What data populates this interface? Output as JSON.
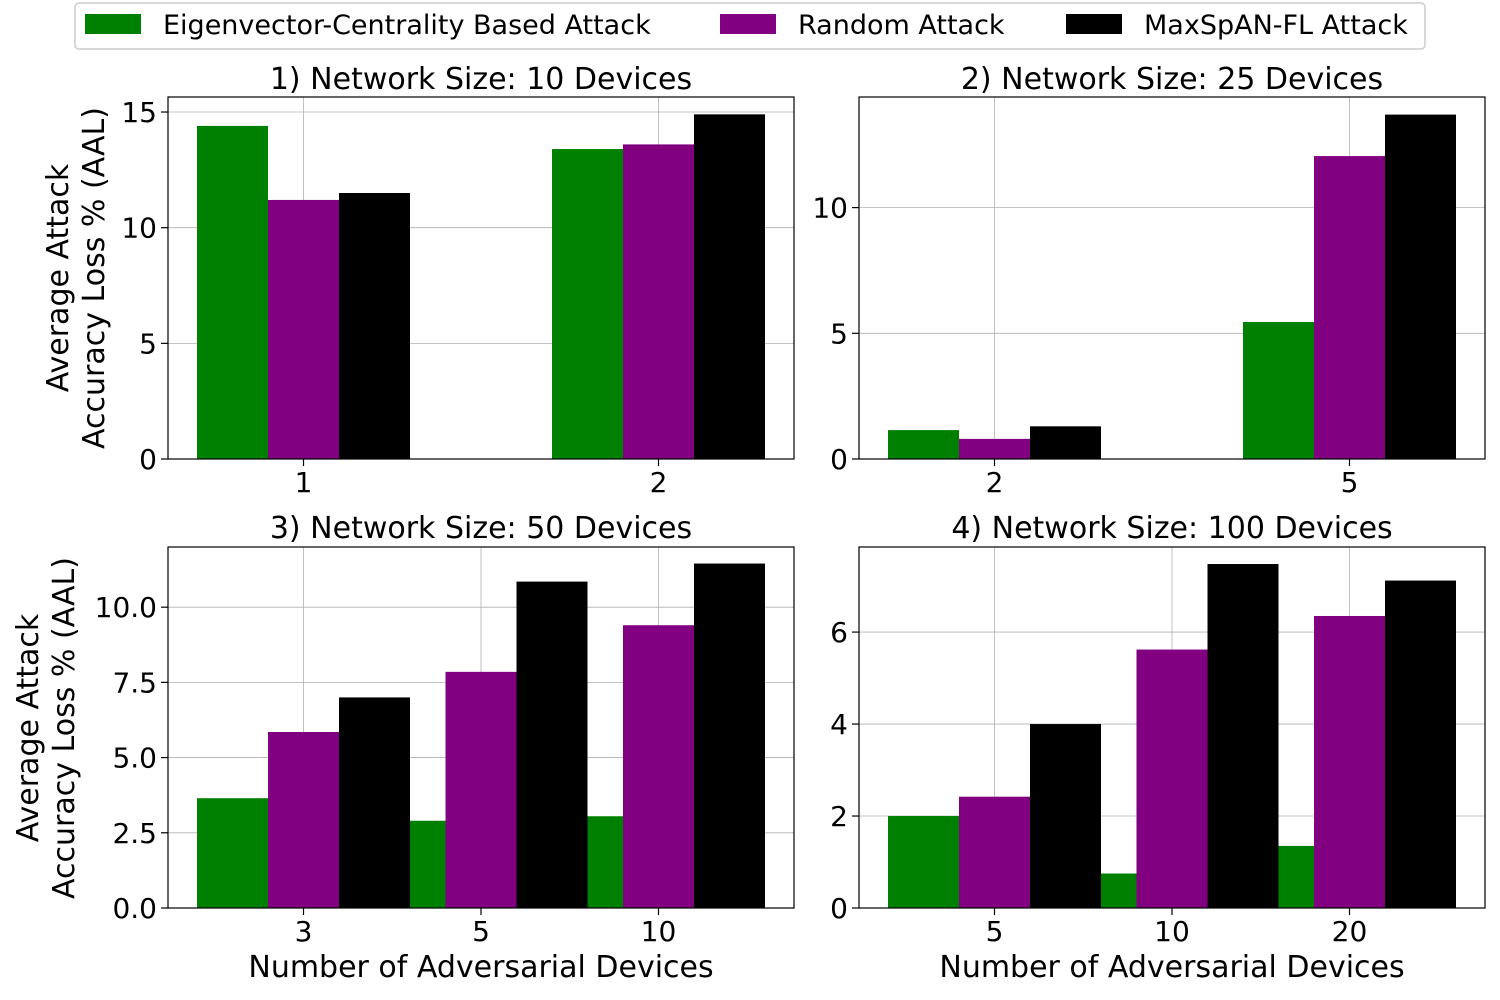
{
  "legend": {
    "items": [
      {
        "label": "Eigenvector-Centrality Based Attack",
        "color": "#008000"
      },
      {
        "label": "Random Attack",
        "color": "#800080"
      },
      {
        "label": "MaxSpAN-FL Attack",
        "color": "#000000"
      }
    ]
  },
  "chart_data": [
    {
      "type": "bar",
      "title": "1) Network Size: 10 Devices",
      "xlabel": "",
      "ylabel": [
        "Average Attack",
        "Accuracy Loss % (AAL)"
      ],
      "categories": [
        "1",
        "2"
      ],
      "series": [
        {
          "name": "Eigenvector-Centrality Based Attack",
          "values": [
            14.4,
            13.4
          ]
        },
        {
          "name": "Random Attack",
          "values": [
            11.2,
            13.6
          ]
        },
        {
          "name": "MaxSpAN-FL Attack",
          "values": [
            11.5,
            14.9
          ]
        }
      ],
      "ylim": [
        0,
        15.65
      ],
      "yticks": [
        0,
        5,
        10,
        15
      ],
      "ytick_labels": [
        "0",
        "5",
        "10",
        "15"
      ],
      "grid": true
    },
    {
      "type": "bar",
      "title": "2) Network Size: 25 Devices",
      "xlabel": "",
      "ylabel": [],
      "categories": [
        "2",
        "5"
      ],
      "series": [
        {
          "name": "Eigenvector-Centrality Based Attack",
          "values": [
            1.15,
            5.45
          ]
        },
        {
          "name": "Random Attack",
          "values": [
            0.8,
            12.05
          ]
        },
        {
          "name": "MaxSpAN-FL Attack",
          "values": [
            1.3,
            13.7
          ]
        }
      ],
      "ylim": [
        0,
        14.4
      ],
      "yticks": [
        0,
        5,
        10
      ],
      "ytick_labels": [
        "0",
        "5",
        "10"
      ],
      "grid": true
    },
    {
      "type": "bar",
      "title": "3) Network Size: 50 Devices",
      "xlabel": "Number of Adversarial Devices",
      "ylabel": [
        "Average Attack",
        "Accuracy Loss % (AAL)"
      ],
      "categories": [
        "3",
        "5",
        "10"
      ],
      "series": [
        {
          "name": "Eigenvector-Centrality Based Attack",
          "values": [
            3.65,
            2.9,
            3.05
          ]
        },
        {
          "name": "Random Attack",
          "values": [
            5.85,
            7.85,
            9.4
          ]
        },
        {
          "name": "MaxSpAN-FL Attack",
          "values": [
            7.0,
            10.85,
            11.45
          ]
        }
      ],
      "ylim": [
        0,
        12.0
      ],
      "yticks": [
        0,
        2.5,
        5,
        7.5,
        10
      ],
      "ytick_labels": [
        "0.0",
        "2.5",
        "5.0",
        "7.5",
        "10.0"
      ],
      "grid": true
    },
    {
      "type": "bar",
      "title": "4) Network Size: 100 Devices",
      "xlabel": "Number of Adversarial Devices",
      "ylabel": [],
      "categories": [
        "5",
        "10",
        "20"
      ],
      "series": [
        {
          "name": "Eigenvector-Centrality Based Attack",
          "values": [
            2.0,
            0.75,
            1.35
          ]
        },
        {
          "name": "Random Attack",
          "values": [
            2.42,
            5.62,
            6.35
          ]
        },
        {
          "name": "MaxSpAN-FL Attack",
          "values": [
            4.0,
            7.48,
            7.12
          ]
        }
      ],
      "ylim": [
        0,
        7.85
      ],
      "yticks": [
        0,
        2,
        4,
        6
      ],
      "ytick_labels": [
        "0",
        "2",
        "4",
        "6"
      ],
      "grid": true
    }
  ]
}
